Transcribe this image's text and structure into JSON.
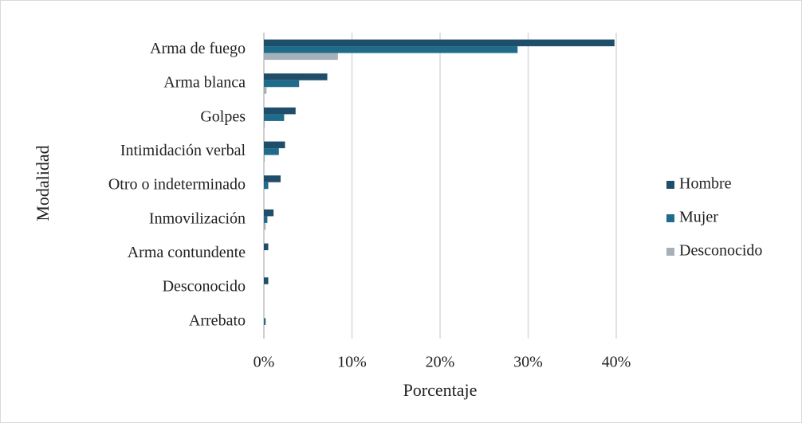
{
  "chart_data": {
    "type": "hbar",
    "xlabel": "Porcentaje",
    "ylabel": "Modalidad",
    "categories": [
      "Arma de fuego",
      "Arma blanca",
      "Golpes",
      "Intimidación verbal",
      "Otro o indeterminado",
      "Inmovilización",
      "Arma contundente",
      "Desconocido",
      "Arrebato"
    ],
    "series": [
      {
        "name": "Hombre",
        "color": "#1f4e6b",
        "values": [
          39.8,
          7.2,
          3.6,
          2.4,
          1.9,
          1.1,
          0.5,
          0.5,
          0
        ]
      },
      {
        "name": "Mujer",
        "color": "#1f6b8a",
        "values": [
          28.8,
          4.0,
          2.3,
          1.7,
          0.5,
          0.4,
          0,
          0,
          0.2
        ]
      },
      {
        "name": "Desconocido",
        "color": "#a5b0ba",
        "values": [
          8.4,
          0.3,
          0.1,
          0.1,
          0,
          0.2,
          0,
          0,
          0
        ]
      }
    ],
    "xlim": [
      0,
      40
    ],
    "xticks": [
      {
        "value": 0,
        "label": "0%"
      },
      {
        "value": 10,
        "label": "10%"
      },
      {
        "value": 20,
        "label": "20%"
      },
      {
        "value": 30,
        "label": "30%"
      },
      {
        "value": 40,
        "label": "40%"
      }
    ],
    "grid": true,
    "legend": "right"
  }
}
